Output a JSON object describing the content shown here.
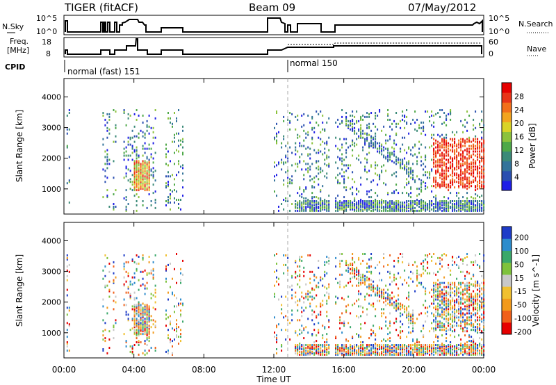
{
  "header": {
    "title": "TIGER (fitACF)",
    "beam": "Beam 09",
    "date": "07/May/2012"
  },
  "strip": {
    "nsky_label": "N.Sky",
    "nsky_ticks": [
      "10^5",
      "10^0"
    ],
    "nsearch_label": "N.Search",
    "nsearch_ticks": [
      "10^5",
      "10^0"
    ],
    "freq_label_line1": "Freq.",
    "freq_label_line2": "[MHz]",
    "freq_ticks": [
      "18",
      "8"
    ],
    "nave_label": "Nave",
    "nave_ticks": [
      "60",
      "0"
    ],
    "cpid_label": "CPID",
    "mode1": "normal (fast) 151",
    "mode2": "normal 150"
  },
  "chart_data": [
    {
      "type": "heatmap",
      "title": "",
      "xlabel": "Time UT",
      "ylabel": "Slant Range [km]",
      "xticks": [
        "00:00",
        "04:00",
        "08:00",
        "12:00",
        "16:00",
        "20:00",
        "00:00"
      ],
      "xlim_hours": [
        0,
        24
      ],
      "yticks": [
        1000,
        2000,
        3000,
        4000
      ],
      "ylim_km": [
        180,
        4600
      ],
      "colorbar": {
        "label": "Power [dB]",
        "ticks": [
          "4",
          "8",
          "12",
          "16",
          "20",
          "24",
          "28"
        ],
        "colors": [
          "#1e1ee6",
          "#2a4fb0",
          "#33739a",
          "#3b8a78",
          "#4ea848",
          "#8cc23c",
          "#d9d326",
          "#f2a41e",
          "#f26f1a",
          "#e83418",
          "#e60000"
        ]
      },
      "data_coverage_hours": [
        [
          0.15,
          0.3
        ],
        [
          2.2,
          2.6
        ],
        [
          2.8,
          3.0
        ],
        [
          3.4,
          5.3
        ],
        [
          5.8,
          6.85
        ],
        [
          12.0,
          12.3
        ],
        [
          12.4,
          13.0
        ],
        [
          13.2,
          15.2
        ],
        [
          15.5,
          24.0
        ]
      ]
    },
    {
      "type": "heatmap",
      "title": "",
      "xlabel": "Time UT",
      "ylabel": "Slant Range [km]",
      "xticks": [
        "00:00",
        "04:00",
        "08:00",
        "12:00",
        "16:00",
        "20:00",
        "00:00"
      ],
      "xlim_hours": [
        0,
        24
      ],
      "yticks": [
        1000,
        2000,
        3000,
        4000
      ],
      "ylim_km": [
        180,
        4600
      ],
      "colorbar": {
        "label": "Velocity [m s^-1]",
        "ticks": [
          "200",
          "100",
          "50",
          "15",
          "-15",
          "-50",
          "-100",
          "-200"
        ],
        "colors": [
          "#1e3cc8",
          "#2d8ccc",
          "#3aa86a",
          "#7ec23c",
          "#c8c8c8",
          "#f0c030",
          "#f29a1c",
          "#f0601a",
          "#e60000"
        ]
      },
      "data_coverage_hours": [
        [
          0.15,
          0.3
        ],
        [
          2.2,
          2.6
        ],
        [
          2.8,
          3.0
        ],
        [
          3.4,
          5.3
        ],
        [
          5.8,
          6.85
        ],
        [
          12.0,
          12.3
        ],
        [
          12.4,
          13.0
        ],
        [
          13.2,
          15.2
        ],
        [
          15.5,
          24.0
        ]
      ]
    }
  ]
}
